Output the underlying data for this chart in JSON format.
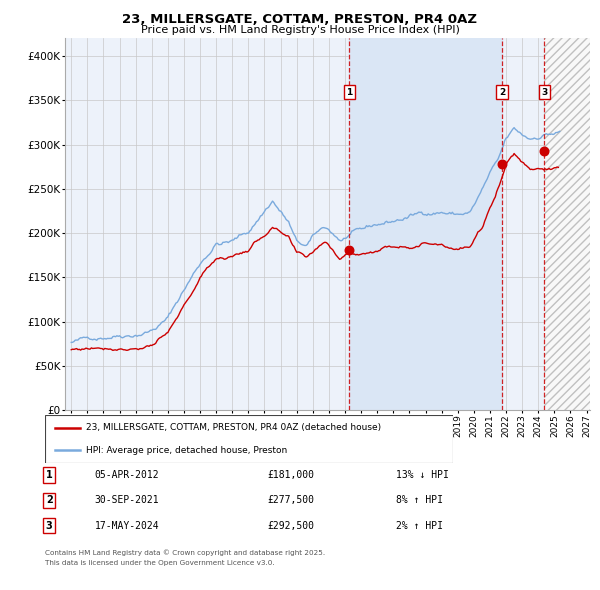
{
  "title": "23, MILLERSGATE, COTTAM, PRESTON, PR4 0AZ",
  "subtitle": "Price paid vs. HM Land Registry's House Price Index (HPI)",
  "legend_property": "23, MILLERSGATE, COTTAM, PRESTON, PR4 0AZ (detached house)",
  "legend_hpi": "HPI: Average price, detached house, Preston",
  "sale_dates_display": [
    "05-APR-2012",
    "30-SEP-2021",
    "17-MAY-2024"
  ],
  "sale_prices_display": [
    "£181,000",
    "£277,500",
    "£292,500"
  ],
  "sale_hpi_diff": [
    "13% ↓ HPI",
    "8% ↑ HPI",
    "2% ↑ HPI"
  ],
  "sale_labels": [
    "1",
    "2",
    "3"
  ],
  "sale_years": [
    2012.27,
    2021.75,
    2024.38
  ],
  "sale_prices": [
    181000,
    277500,
    292500
  ],
  "footer_line1": "Contains HM Land Registry data © Crown copyright and database right 2025.",
  "footer_line2": "This data is licensed under the Open Government Licence v3.0.",
  "background_color": "#ffffff",
  "plot_bg_color": "#edf2fa",
  "grid_color": "#c8c8c8",
  "hpi_line_color": "#7aaadd",
  "property_line_color": "#cc0000",
  "shade_color": "#dae6f5",
  "hatch_bg_color": "#f0f0f0",
  "ylim": [
    0,
    420000
  ],
  "xlim": [
    1994.6,
    2027.2
  ],
  "yticks": [
    0,
    50000,
    100000,
    150000,
    200000,
    250000,
    300000,
    350000,
    400000
  ],
  "ytick_labels": [
    "£0",
    "£50K",
    "£100K",
    "£150K",
    "£200K",
    "£250K",
    "£300K",
    "£350K",
    "£400K"
  ],
  "xticks": [
    1995,
    1996,
    1997,
    1998,
    1999,
    2000,
    2001,
    2002,
    2003,
    2004,
    2005,
    2006,
    2007,
    2008,
    2009,
    2010,
    2011,
    2012,
    2013,
    2014,
    2015,
    2016,
    2017,
    2018,
    2019,
    2020,
    2021,
    2022,
    2023,
    2024,
    2025,
    2026,
    2027
  ]
}
